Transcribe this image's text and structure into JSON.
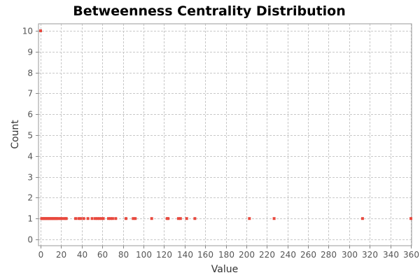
{
  "chart_data": {
    "type": "scatter",
    "title": "Betweenness Centrality Distribution",
    "xlabel": "Value",
    "ylabel": "Count",
    "xlim": [
      0,
      360
    ],
    "ylim": [
      0,
      10
    ],
    "xticks": [
      0,
      20,
      40,
      60,
      80,
      100,
      120,
      140,
      160,
      180,
      200,
      220,
      240,
      260,
      280,
      300,
      320,
      340,
      360
    ],
    "yticks": [
      0,
      1,
      2,
      3,
      4,
      5,
      6,
      7,
      8,
      9,
      10
    ],
    "grid": true,
    "legend": "none",
    "series": [
      {
        "color": "#e8493e",
        "points": [
          [
            0,
            10
          ],
          [
            1,
            1
          ],
          [
            2,
            1
          ],
          [
            3,
            1
          ],
          [
            4,
            1
          ],
          [
            5,
            1
          ],
          [
            6,
            1
          ],
          [
            7,
            1
          ],
          [
            8,
            1
          ],
          [
            9,
            1
          ],
          [
            10,
            1
          ],
          [
            11,
            1
          ],
          [
            12,
            1
          ],
          [
            13,
            1
          ],
          [
            14,
            1
          ],
          [
            15,
            1
          ],
          [
            16,
            1
          ],
          [
            17,
            1
          ],
          [
            19,
            1
          ],
          [
            20,
            1
          ],
          [
            22,
            1
          ],
          [
            24,
            1
          ],
          [
            25,
            1
          ],
          [
            34,
            1
          ],
          [
            37,
            1
          ],
          [
            39,
            1
          ],
          [
            42,
            1
          ],
          [
            46,
            1
          ],
          [
            50,
            1
          ],
          [
            53,
            1
          ],
          [
            55,
            1
          ],
          [
            57,
            1
          ],
          [
            59,
            1
          ],
          [
            61,
            1
          ],
          [
            66,
            1
          ],
          [
            68,
            1
          ],
          [
            70,
            1
          ],
          [
            73,
            1
          ],
          [
            83,
            1
          ],
          [
            90,
            1
          ],
          [
            92,
            1
          ],
          [
            108,
            1
          ],
          [
            123,
            1
          ],
          [
            124,
            1
          ],
          [
            134,
            1
          ],
          [
            136,
            1
          ],
          [
            142,
            1
          ],
          [
            150,
            1
          ],
          [
            203,
            1
          ],
          [
            227,
            1
          ],
          [
            313,
            1
          ],
          [
            360,
            1
          ]
        ]
      }
    ]
  },
  "colors": {
    "plot_border": "#999999",
    "grid": "#c8c8c8",
    "point": "#e8493e"
  }
}
